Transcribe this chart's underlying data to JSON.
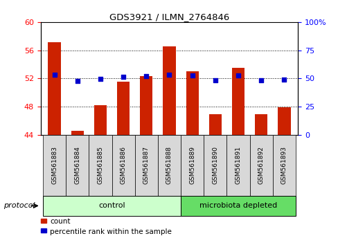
{
  "title": "GDS3921 / ILMN_2764846",
  "samples": [
    "GSM561883",
    "GSM561884",
    "GSM561885",
    "GSM561886",
    "GSM561887",
    "GSM561888",
    "GSM561889",
    "GSM561890",
    "GSM561891",
    "GSM561892",
    "GSM561893"
  ],
  "count_values": [
    57.1,
    44.6,
    48.2,
    51.5,
    52.3,
    56.5,
    53.0,
    46.9,
    53.5,
    46.9,
    47.9
  ],
  "percentile_values": [
    53.5,
    47.5,
    49.5,
    51.5,
    52.3,
    53.5,
    52.5,
    48.5,
    52.5,
    48.5,
    49.2
  ],
  "count_base": 44.0,
  "ylim_left": [
    44,
    60
  ],
  "ylim_right": [
    0,
    100
  ],
  "yticks_left": [
    44,
    48,
    52,
    56,
    60
  ],
  "yticks_right": [
    0,
    25,
    50,
    75,
    100
  ],
  "bar_color": "#cc2200",
  "dot_color": "#0000cc",
  "control_color": "#ccffcc",
  "depleted_color": "#66dd66",
  "protocol_label": "protocol",
  "group_labels": [
    "control",
    "microbiota depleted"
  ],
  "legend_items": [
    "count",
    "percentile rank within the sample"
  ],
  "background_color": "#ffffff",
  "tick_bg_color": "#d8d8d8",
  "grid_color": "#000000",
  "right_tick_labels": [
    "0",
    "25",
    "50",
    "75",
    "100%"
  ]
}
